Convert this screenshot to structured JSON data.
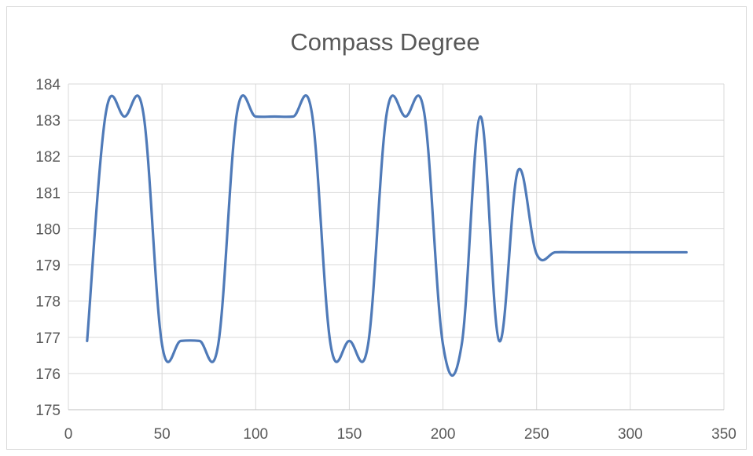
{
  "chart_data": {
    "type": "line",
    "title": "Compass Degree",
    "xlabel": "",
    "ylabel": "",
    "xlim": [
      0,
      350
    ],
    "ylim": [
      175,
      184
    ],
    "xticks": [
      0,
      50,
      100,
      150,
      200,
      250,
      300,
      350
    ],
    "yticks": [
      175,
      176,
      177,
      178,
      179,
      180,
      181,
      182,
      183,
      184
    ],
    "grid": true,
    "legend": "none",
    "series": [
      {
        "color": "#4f7ab8",
        "x": [
          10,
          20,
          30,
          40,
          50,
          60,
          70,
          80,
          90,
          100,
          110,
          120,
          130,
          140,
          150,
          160,
          170,
          180,
          190,
          200,
          210,
          220,
          230,
          240,
          250,
          260,
          270,
          280,
          290,
          300,
          310,
          320,
          330
        ],
        "y": [
          176.9,
          183.2,
          183.1,
          183.2,
          176.8,
          176.9,
          176.9,
          176.8,
          183.2,
          183.1,
          183.1,
          183.1,
          183.2,
          176.8,
          176.9,
          176.8,
          183.2,
          183.1,
          183.2,
          176.8,
          176.8,
          183.1,
          176.9,
          181.6,
          179.3,
          179.35,
          179.35,
          179.35,
          179.35,
          179.35,
          179.35,
          179.35,
          179.35
        ]
      }
    ]
  }
}
